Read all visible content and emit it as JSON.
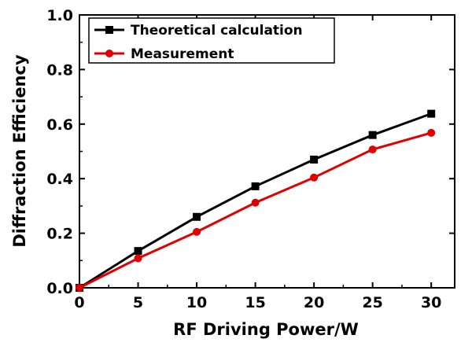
{
  "chart_data": {
    "type": "line",
    "title": "",
    "xlabel": "RF Driving Power/W",
    "ylabel": "Diffraction Efficiency",
    "xlim": [
      0,
      32
    ],
    "ylim": [
      0,
      1.0
    ],
    "xticks": [
      "0",
      "5",
      "10",
      "15",
      "20",
      "25",
      "30"
    ],
    "yticks": [
      "0.0",
      "0.2",
      "0.4",
      "0.6",
      "0.8",
      "1.0"
    ],
    "legend_position": "top-left",
    "grid": false,
    "x": [
      0,
      5,
      10,
      15,
      20,
      25,
      30
    ],
    "series": [
      {
        "name": "Theoretical calculation",
        "color": "#000000",
        "marker": "square",
        "values": [
          0.0,
          0.135,
          0.26,
          0.372,
          0.47,
          0.56,
          0.638
        ]
      },
      {
        "name": "Measurement",
        "color": "#e00000",
        "marker": "circle",
        "values": [
          0.0,
          0.108,
          0.205,
          0.312,
          0.404,
          0.507,
          0.568
        ]
      }
    ]
  }
}
